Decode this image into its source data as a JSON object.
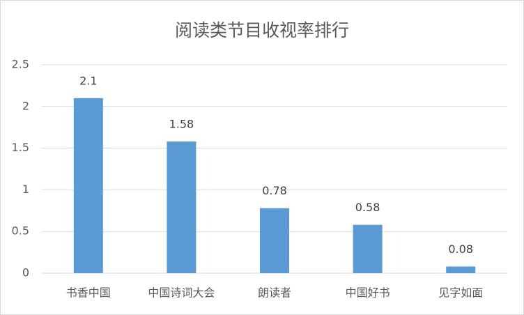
{
  "chart_data": {
    "type": "bar",
    "title": "阅读类节目收视率排行",
    "categories": [
      "书香中国",
      "中国诗词大会",
      "朗读者",
      "中国好书",
      "见字如面"
    ],
    "values": [
      2.1,
      1.58,
      0.78,
      0.58,
      0.08
    ],
    "color": "#5b9bd5",
    "ylim": [
      0,
      2.5
    ],
    "yticks": [
      0,
      0.5,
      1,
      1.5,
      2,
      2.5
    ],
    "grid": true
  }
}
